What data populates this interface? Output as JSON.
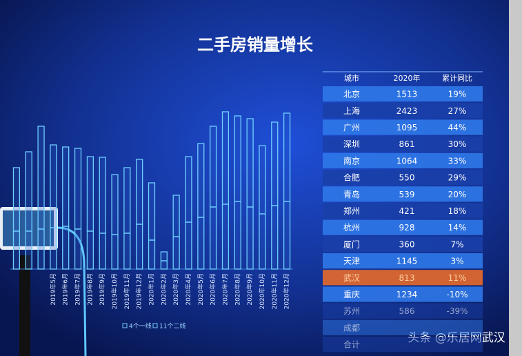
{
  "chart_data": {
    "type": "bar",
    "title": "二手房销量增长",
    "categories": [
      null,
      null,
      null,
      "2019年5月",
      "2019年6月",
      "2019年7月",
      "2019年8月",
      "2019年9月",
      "2019年10月",
      "2019年11月",
      "2019年12月",
      "2020年1月",
      "2020年2月",
      "2020年3月",
      "2020年4月",
      "2020年5月",
      "2020年6月",
      "2020年7月",
      "2020年8月",
      "2020年9月",
      "2020年10月",
      "2020年11月",
      "2020年12月"
    ],
    "series": [
      {
        "name": "4个一线",
        "color": "#6fd0ff",
        "values": [
          55,
          55,
          58,
          60,
          62,
          58,
          55,
          52,
          50,
          52,
          65,
          42,
          12,
          47,
          68,
          75,
          90,
          94,
          98,
          90,
          80,
          92,
          98
        ]
      },
      {
        "name": "11个二线",
        "color": "#6fd0ff",
        "values": [
          92,
          115,
          149,
          120,
          115,
          117,
          108,
          110,
          87,
          95,
          94,
          83,
          13,
          60,
          95,
          107,
          117,
          134,
          124,
          128,
          99,
          121,
          128
        ]
      }
    ],
    "stacked": true,
    "ylim": [
      0,
      240
    ]
  },
  "table": {
    "header": [
      "城市",
      "2020年",
      "累计同比"
    ],
    "rows": [
      [
        "北京",
        1513,
        "19%"
      ],
      [
        "上海",
        2423,
        "27%"
      ],
      [
        "广州",
        1095,
        "44%"
      ],
      [
        "深圳",
        861,
        "30%"
      ],
      [
        "南京",
        1064,
        "33%"
      ],
      [
        "合肥",
        550,
        "29%"
      ],
      [
        "青岛",
        539,
        "20%"
      ],
      [
        "郑州",
        421,
        "18%"
      ],
      [
        "杭州",
        928,
        "14%"
      ],
      [
        "厦门",
        360,
        "7%"
      ],
      [
        "天津",
        1145,
        "3%"
      ],
      [
        "武汉",
        813,
        "11%"
      ],
      [
        "重庆",
        1234,
        "-10%"
      ],
      [
        "苏州",
        586,
        "-39%"
      ],
      [
        "成都"
      ],
      [
        "合计"
      ]
    ],
    "highlight_row": 11
  },
  "watermark": "头条 @乐居网武汉"
}
